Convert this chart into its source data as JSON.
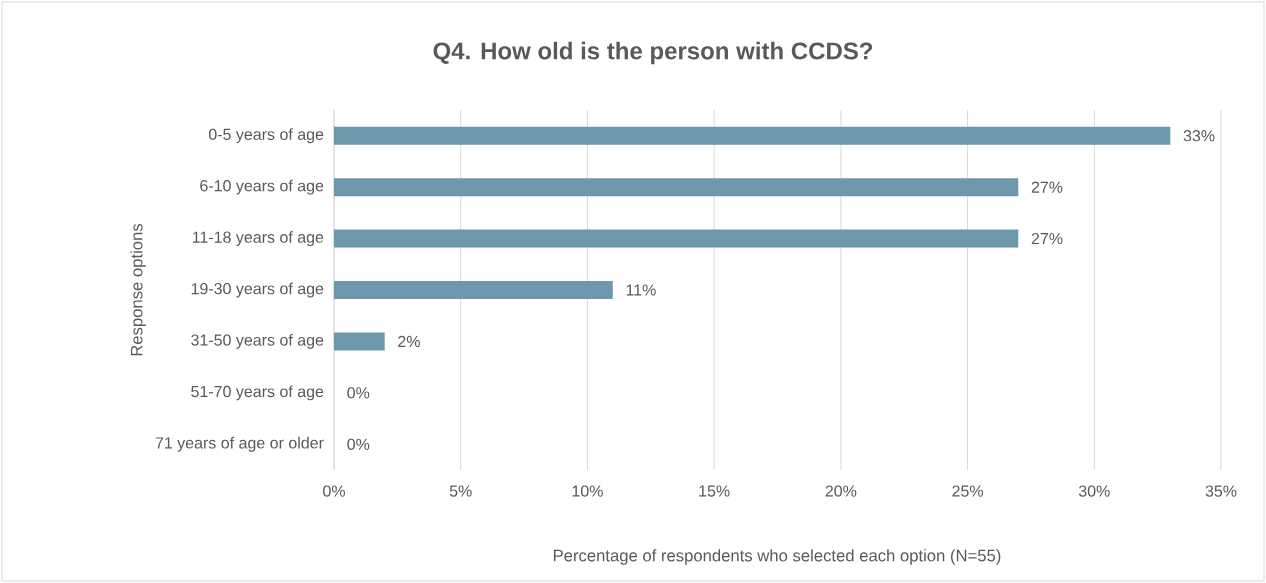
{
  "chart_data": {
    "type": "bar",
    "orientation": "horizontal",
    "title": "Q4. How old is the person with CCDS?",
    "xlabel": "Percentage of respondents who selected each option (N=55)",
    "ylabel": "Response options",
    "categories": [
      "0-5 years of age",
      "6-10 years of age",
      "11-18 years of age",
      "19-30 years of age",
      "31-50 years of age",
      "51-70 years of age",
      "71 years of age or older"
    ],
    "values": [
      33,
      27,
      27,
      11,
      2,
      0,
      0
    ],
    "value_labels": [
      "33%",
      "27%",
      "27%",
      "11%",
      "2%",
      "0%",
      "0%"
    ],
    "color": "#6d97aa",
    "xlim": [
      0,
      35
    ],
    "xticks": [
      {
        "value": 0,
        "label": "0%"
      },
      {
        "value": 5,
        "label": "5%"
      },
      {
        "value": 10,
        "label": "10%"
      },
      {
        "value": 15,
        "label": "15%"
      },
      {
        "value": 20,
        "label": "20%"
      },
      {
        "value": 25,
        "label": "25%"
      },
      {
        "value": 30,
        "label": "30%"
      },
      {
        "value": 35,
        "label": "35%"
      }
    ],
    "grid": "x"
  }
}
